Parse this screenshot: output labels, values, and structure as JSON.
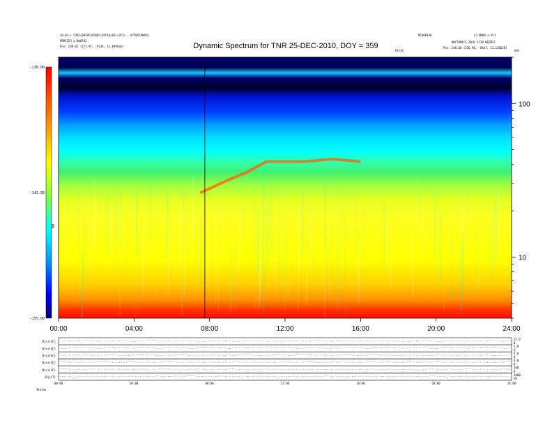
{
  "chart_data": {
    "type": "heatmap",
    "title": "Dynamic Spectrum for TNR 25-DEC-2010, DOY = 359",
    "header_left": [
      "10-03 • 5382(0039FAC668F(82C10(83)(3t1) - 87INSTAN45C",
      "MSM1353 a 8m6932",
      "Pos: 249.62 (227.97, -9234, 11.849GSE)"
    ],
    "header_right": [
      "MC000340",
      "L3 MOOR a 8i1",
      "NOCTURN'S 2010 1230 NIEM17",
      "Pos: 248.60 (236.90, -8447, 11.130GSE)"
    ],
    "event_label": "ES/SC",
    "corner_label": "kHz",
    "x_ticks": [
      "00:00",
      "04:00",
      "08:00",
      "12:00",
      "16:00",
      "20:00",
      "24:00"
    ],
    "x_range_hours": [
      0,
      24
    ],
    "y_scale": "log",
    "y_range_khz": [
      4,
      200
    ],
    "y_ticks": [
      {
        "value": 10,
        "label": "10"
      },
      {
        "value": 100,
        "label": "100"
      }
    ],
    "colorbar": {
      "ticks": [
        "-130.00",
        "-142.50",
        "-155.00"
      ],
      "range": [
        -155.0,
        -130.0
      ],
      "label": "TNR",
      "colors": [
        "#00008b",
        "#0000ff",
        "#0080ff",
        "#00ffff",
        "#80ff80",
        "#ffff00",
        "#ff8000",
        "#ff0000"
      ]
    },
    "marker_line_hour": 7.75,
    "panels": [
      {
        "label": "B(n)(SC)",
        "right_top": "25.0",
        "right_bottom": "0"
      },
      {
        "label": "B(n)(SC)",
        "right_top": "5.0",
        "right_bottom": "0"
      },
      {
        "label": "B(n)(SC)",
        "right_top": "5.0",
        "right_bottom": "0"
      },
      {
        "label": "B(n)(SC)",
        "right_top": "5.0",
        "right_bottom": "0"
      },
      {
        "label": "N(n)(SC)",
        "right_top": "100",
        "right_bottom": "0"
      },
      {
        "label": "|B|(nT)",
        "right_top": "1000",
        "right_bottom": "10"
      }
    ],
    "panel_x_ticks": [
      "00:00",
      "04:00",
      "08:00",
      "12:00",
      "16:00",
      "20:00",
      "24:00"
    ],
    "footer_label": "Status"
  }
}
